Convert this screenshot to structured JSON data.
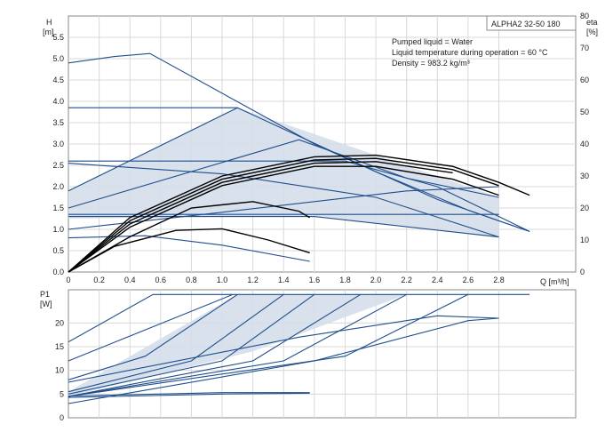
{
  "chart_data": [
    {
      "type": "line",
      "panel": "head",
      "model_label": "ALPHA2 32-50 180",
      "notes": [
        "Pumped liquid = Water",
        "Liquid temperature during operation = 60 °C",
        "Density = 983.2 kg/m³"
      ],
      "ylabel": [
        "H",
        "[m]"
      ],
      "y2label": [
        "eta",
        "[%]"
      ],
      "xlabel": "Q [m³/h]",
      "xlim": [
        0,
        3.3
      ],
      "ylim": [
        0,
        6.0
      ],
      "y2lim": [
        0,
        80
      ],
      "xticks": [
        "0",
        "0.2",
        "0.4",
        "0.6",
        "0.8",
        "1.0",
        "1.2",
        "1.4",
        "1.6",
        "1.8",
        "2.0",
        "2.2",
        "2.4",
        "2.6",
        "2.8"
      ],
      "yticks": [
        "0.0",
        "0.5",
        "1.0",
        "1.5",
        "2.0",
        "2.5",
        "3.0",
        "3.5",
        "4.0",
        "4.5",
        "5.0",
        "5.5"
      ],
      "y2ticks": [
        "0",
        "10",
        "20",
        "30",
        "40",
        "50",
        "60",
        "70",
        "80"
      ],
      "grid": true,
      "colors": {
        "curve": "#1f4e8c",
        "band_fill": "#d4deea",
        "eta": "#000000",
        "frame": "#888888"
      },
      "shaded_region": [
        [
          0,
          1.25
        ],
        [
          0,
          1.9
        ],
        [
          1.1,
          3.85
        ],
        [
          2.8,
          1.75
        ],
        [
          2.8,
          0.8
        ],
        [
          1.6,
          1.32
        ],
        [
          0,
          1.25
        ]
      ],
      "series": [
        {
          "name": "",
          "role": "head",
          "points": [
            [
              0,
              4.9
            ],
            [
              0.3,
              5.05
            ],
            [
              0.53,
              5.12
            ],
            [
              1.6,
              3.0
            ],
            [
              2.4,
              1.7
            ],
            [
              3.0,
              0.95
            ]
          ]
        },
        {
          "name": "",
          "role": "head",
          "points": [
            [
              0,
              3.85
            ],
            [
              1.1,
              3.85
            ],
            [
              2.0,
              2.35
            ],
            [
              2.6,
              1.45
            ],
            [
              3.0,
              0.95
            ]
          ]
        },
        {
          "name": "",
          "role": "head",
          "points": [
            [
              0,
              1.9
            ],
            [
              1.1,
              3.85
            ]
          ]
        },
        {
          "name": "",
          "role": "head",
          "points": [
            [
              0,
              1.5
            ],
            [
              1.5,
              3.1
            ],
            [
              2.2,
              2.2
            ],
            [
              2.8,
              1.75
            ]
          ]
        },
        {
          "name": "",
          "role": "head",
          "points": [
            [
              0,
              2.6
            ],
            [
              1.8,
              2.6
            ],
            [
              2.4,
              2.0
            ],
            [
              3.0,
              0.95
            ]
          ]
        },
        {
          "name": "",
          "role": "head",
          "points": [
            [
              0,
              2.55
            ],
            [
              1.0,
              2.3
            ],
            [
              2.0,
              1.75
            ],
            [
              2.8,
              0.82
            ]
          ]
        },
        {
          "name": "",
          "role": "head",
          "points": [
            [
              0,
              1.35
            ],
            [
              2.8,
              1.35
            ]
          ]
        },
        {
          "name": "",
          "role": "head",
          "points": [
            [
              0,
              1.0
            ],
            [
              1.0,
              1.4
            ],
            [
              2.2,
              1.9
            ],
            [
              2.8,
              2.0
            ]
          ]
        },
        {
          "name": "",
          "role": "head",
          "points": [
            [
              0,
              0.8
            ],
            [
              0.5,
              0.85
            ],
            [
              1.0,
              0.63
            ],
            [
              1.57,
              0.25
            ]
          ]
        },
        {
          "name": "",
          "role": "head",
          "points": [
            [
              0,
              1.3
            ],
            [
              1.6,
              1.3
            ],
            [
              2.8,
              0.82
            ]
          ]
        },
        {
          "name": "",
          "role": "eta",
          "points": [
            [
              0,
              0
            ],
            [
              0.4,
              17
            ],
            [
              1.0,
              30
            ],
            [
              1.6,
              36
            ],
            [
              2.0,
              36.5
            ],
            [
              2.5,
              33
            ],
            [
              2.8,
              28
            ],
            [
              3.0,
              24
            ]
          ]
        },
        {
          "name": "",
          "role": "eta",
          "points": [
            [
              0,
              0
            ],
            [
              0.4,
              16
            ],
            [
              1.0,
              29
            ],
            [
              1.6,
              35
            ],
            [
              2.0,
              35.5
            ],
            [
              2.5,
              32
            ],
            [
              2.8,
              27
            ]
          ]
        },
        {
          "name": "",
          "role": "eta",
          "points": [
            [
              0,
              0
            ],
            [
              0.4,
              15
            ],
            [
              1.0,
              28
            ],
            [
              1.6,
              34
            ],
            [
              2.0,
              34.5
            ],
            [
              2.5,
              31
            ]
          ]
        },
        {
          "name": "",
          "role": "eta",
          "points": [
            [
              0,
              0
            ],
            [
              0.4,
              14
            ],
            [
              1.0,
              27
            ],
            [
              1.6,
              33
            ],
            [
              2.0,
              33
            ],
            [
              2.5,
              29
            ],
            [
              2.8,
              24
            ]
          ]
        },
        {
          "name": "",
          "role": "eta",
          "points": [
            [
              0,
              0
            ],
            [
              0.3,
              8
            ],
            [
              0.7,
              13
            ],
            [
              1.0,
              13.5
            ],
            [
              1.3,
              10
            ],
            [
              1.57,
              6
            ]
          ]
        },
        {
          "name": "",
          "role": "eta",
          "points": [
            [
              0,
              0
            ],
            [
              0.4,
              11
            ],
            [
              0.8,
              20
            ],
            [
              1.2,
              22
            ],
            [
              1.5,
              19
            ],
            [
              1.57,
              17
            ]
          ]
        }
      ]
    },
    {
      "type": "line",
      "panel": "power",
      "ylabel": [
        "P1",
        "[W]"
      ],
      "xlim": [
        0,
        3.3
      ],
      "ylim": [
        0,
        27
      ],
      "yticks": [
        "0",
        "5",
        "10",
        "15",
        "20"
      ],
      "grid": true,
      "shaded_region": [
        [
          0,
          4.5
        ],
        [
          0,
          5.5
        ],
        [
          1.1,
          26
        ],
        [
          2.2,
          26
        ],
        [
          1.2,
          14
        ],
        [
          0,
          4.5
        ]
      ],
      "series": [
        {
          "name": "",
          "role": "power",
          "points": [
            [
              0,
              16
            ],
            [
              0.55,
              26
            ],
            [
              3.0,
              26
            ]
          ]
        },
        {
          "name": "",
          "role": "power",
          "points": [
            [
              0,
              12
            ],
            [
              1.07,
              26
            ]
          ]
        },
        {
          "name": "",
          "role": "power",
          "points": [
            [
              0,
              8
            ],
            [
              0.5,
              13
            ],
            [
              1.1,
              26
            ]
          ]
        },
        {
          "name": "",
          "role": "power",
          "points": [
            [
              0,
              5.5
            ],
            [
              0.8,
              12
            ],
            [
              1.4,
              26
            ]
          ]
        },
        {
          "name": "",
          "role": "power",
          "points": [
            [
              0,
              5
            ],
            [
              1.0,
              12
            ],
            [
              1.6,
              26
            ]
          ]
        },
        {
          "name": "",
          "role": "power",
          "points": [
            [
              0,
              4.5
            ],
            [
              1.2,
              12
            ],
            [
              1.9,
              26
            ]
          ]
        },
        {
          "name": "",
          "role": "power",
          "points": [
            [
              0,
              4.5
            ],
            [
              1.4,
              12
            ],
            [
              2.2,
              26
            ]
          ]
        },
        {
          "name": "",
          "role": "power",
          "points": [
            [
              0,
              4.5
            ],
            [
              1.8,
              13
            ],
            [
              2.6,
              26
            ]
          ]
        },
        {
          "name": "",
          "role": "power",
          "points": [
            [
              0,
              7.5
            ],
            [
              1.5,
              17
            ],
            [
              2.4,
              21.5
            ],
            [
              2.8,
              21
            ]
          ]
        },
        {
          "name": "",
          "role": "power",
          "points": [
            [
              0,
              3
            ],
            [
              1.6,
              12
            ],
            [
              2.6,
              20.5
            ],
            [
              2.8,
              21
            ]
          ]
        },
        {
          "name": "",
          "role": "power",
          "points": [
            [
              0,
              4.3
            ],
            [
              1.0,
              5
            ],
            [
              1.57,
              5.2
            ]
          ]
        },
        {
          "name": "",
          "role": "power",
          "points": [
            [
              0,
              4.6
            ],
            [
              1.0,
              5.3
            ],
            [
              1.57,
              5.3
            ]
          ]
        }
      ]
    }
  ]
}
